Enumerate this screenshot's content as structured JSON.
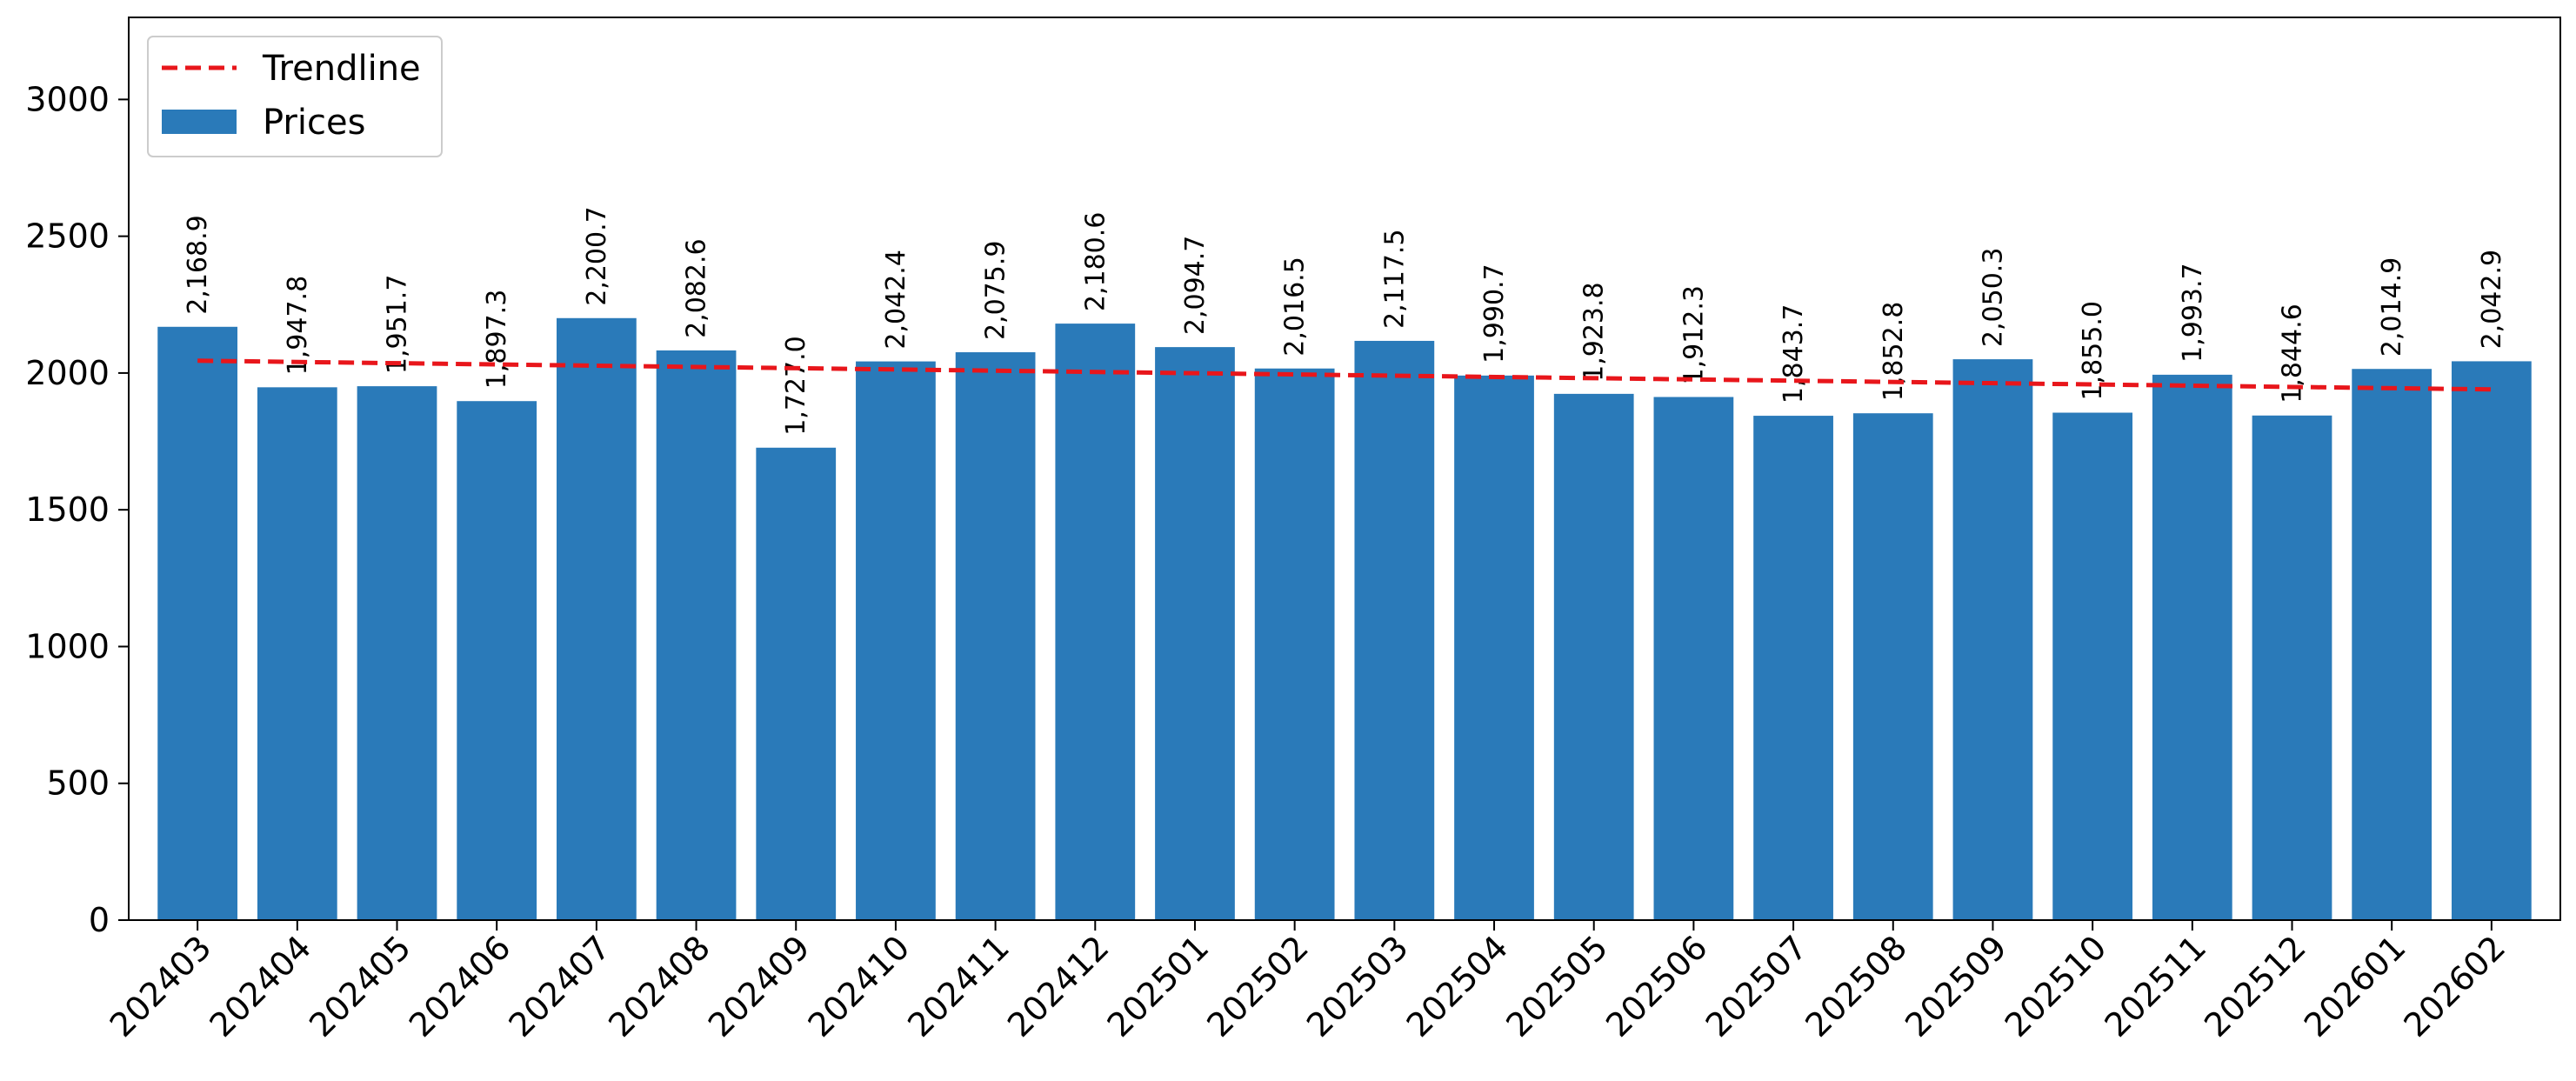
{
  "chart_data": {
    "type": "bar",
    "categories": [
      "202403",
      "202404",
      "202405",
      "202406",
      "202407",
      "202408",
      "202409",
      "202410",
      "202411",
      "202412",
      "202501",
      "202502",
      "202503",
      "202504",
      "202505",
      "202506",
      "202507",
      "202508",
      "202509",
      "202510",
      "202511",
      "202512",
      "202601",
      "202602"
    ],
    "series": [
      {
        "name": "Prices",
        "type": "bar",
        "color": "#2a7ab9",
        "values": [
          2168.9,
          1947.8,
          1951.7,
          1897.3,
          2200.7,
          2082.6,
          1727.0,
          2042.4,
          2075.9,
          2180.6,
          2094.7,
          2016.5,
          2117.5,
          1990.7,
          1923.8,
          1912.3,
          1843.7,
          1852.8,
          2050.3,
          1855.0,
          1993.7,
          1844.6,
          2014.9,
          2042.9
        ],
        "labels": [
          "2,168.9",
          "1,947.8",
          "1,951.7",
          "1,897.3",
          "2,200.7",
          "2,082.6",
          "1,727.0",
          "2,042.4",
          "2,075.9",
          "2,180.6",
          "2,094.7",
          "2,016.5",
          "2,117.5",
          "1,990.7",
          "1,923.8",
          "1,912.3",
          "1,843.7",
          "1,852.8",
          "2,050.3",
          "1,855.0",
          "1,993.7",
          "1,844.6",
          "2,014.9",
          "2,042.9"
        ]
      },
      {
        "name": "Trendline",
        "type": "line",
        "style": "dashed",
        "color": "#e8161b",
        "start": 2045,
        "end": 1940
      }
    ],
    "title": "",
    "xlabel": "",
    "ylabel": "",
    "ylim": [
      0,
      3300
    ],
    "yticks": [
      0,
      500,
      1000,
      1500,
      2000,
      2500,
      3000
    ],
    "yticklabels": [
      "0",
      "500",
      "1000",
      "1500",
      "2000",
      "2500",
      "3000"
    ],
    "xtick_rotation": -45,
    "grid": false,
    "legend": "top-left"
  }
}
